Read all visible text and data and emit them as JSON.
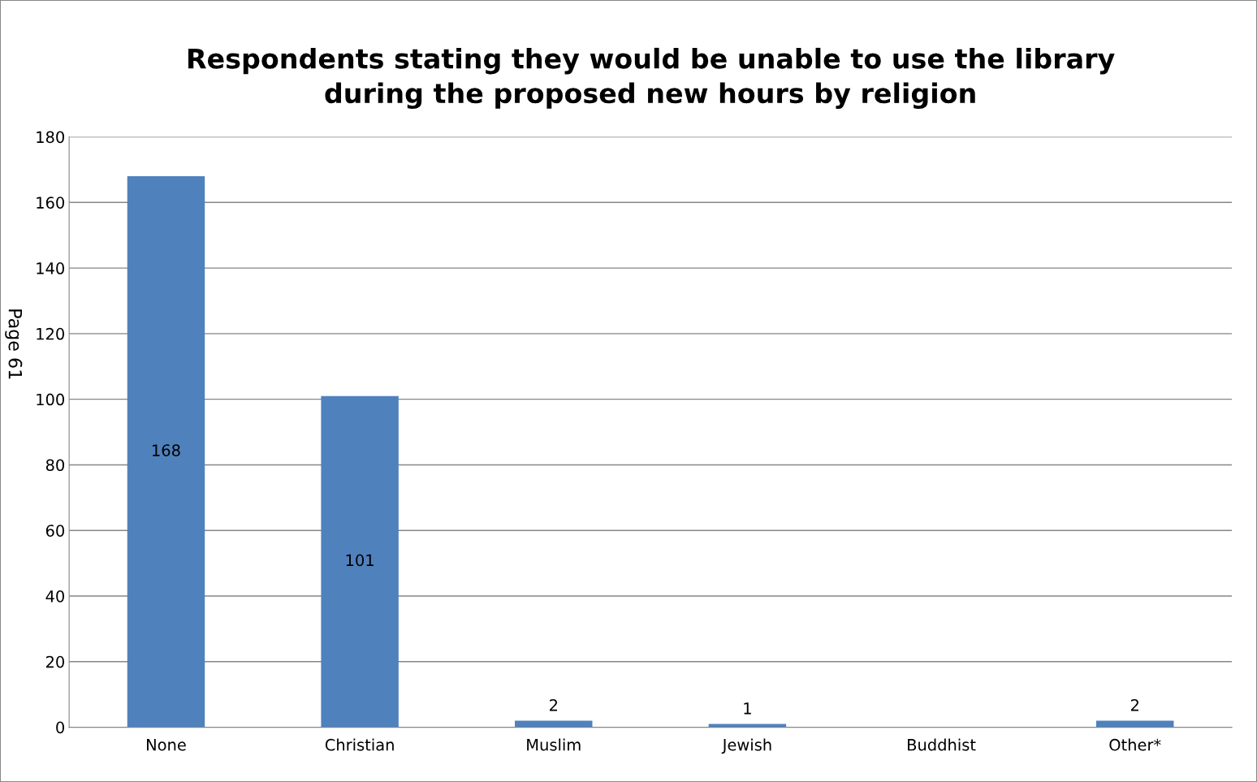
{
  "chart_data": {
    "type": "bar",
    "title": "Respondents stating they would be unable to use the library\nduring the proposed new hours by religion",
    "categories": [
      "None",
      "Christian",
      "Muslim",
      "Jewish",
      "Buddhist",
      "Other*"
    ],
    "values": [
      168,
      101,
      2,
      1,
      null,
      2
    ],
    "value_labels": [
      "168",
      "101",
      "2",
      "1",
      null,
      "2"
    ],
    "color": "#4f81bd",
    "ylim": [
      0,
      180
    ],
    "yticks": [
      0,
      20,
      40,
      60,
      80,
      100,
      120,
      140,
      160,
      180
    ],
    "grid": "y",
    "legend": false,
    "annotations": [
      "Page 61"
    ]
  }
}
